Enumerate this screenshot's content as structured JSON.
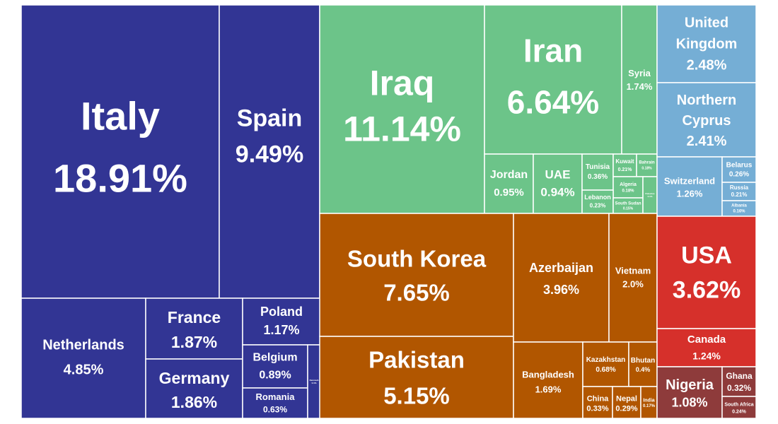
{
  "chart_data": {
    "type": "treemap",
    "title": "",
    "colors": {
      "europe": "#323594",
      "middle_east": "#6cc489",
      "asia": "#b15600",
      "east_europe": "#75aed5",
      "americas": "#d6302b",
      "africa": "#8e3b3b",
      "border": "#ffffff"
    },
    "items": [
      {
        "name": "Italy",
        "value": 18.91,
        "label": "18.91%",
        "group": "europe"
      },
      {
        "name": "Spain",
        "value": 9.49,
        "label": "9.49%",
        "group": "europe"
      },
      {
        "name": "Netherlands",
        "value": 4.85,
        "label": "4.85%",
        "group": "europe"
      },
      {
        "name": "France",
        "value": 1.87,
        "label": "1.87%",
        "group": "europe"
      },
      {
        "name": "Germany",
        "value": 1.86,
        "label": "1.86%",
        "group": "europe"
      },
      {
        "name": "Poland",
        "value": 1.17,
        "label": "1.17%",
        "group": "europe"
      },
      {
        "name": "Belgium",
        "value": 0.89,
        "label": "0.89%",
        "group": "europe"
      },
      {
        "name": "Romania",
        "value": 0.63,
        "label": "0.63%",
        "group": "europe"
      },
      {
        "name": "Denmark",
        "value": 0.1,
        "label": "0.1%",
        "group": "europe"
      },
      {
        "name": "Iraq",
        "value": 11.14,
        "label": "11.14%",
        "group": "middle_east"
      },
      {
        "name": "Iran",
        "value": 6.64,
        "label": "6.64%",
        "group": "middle_east"
      },
      {
        "name": "Syria",
        "value": 1.74,
        "label": "1.74%",
        "group": "middle_east"
      },
      {
        "name": "Jordan",
        "value": 0.95,
        "label": "0.95%",
        "group": "middle_east"
      },
      {
        "name": "UAE",
        "value": 0.94,
        "label": "0.94%",
        "group": "middle_east"
      },
      {
        "name": "Tunisia",
        "value": 0.36,
        "label": "0.36%",
        "group": "middle_east"
      },
      {
        "name": "Kuwait",
        "value": 0.21,
        "label": "0.21%",
        "group": "middle_east"
      },
      {
        "name": "Bahrain",
        "value": 0.18,
        "label": "0.18%",
        "group": "middle_east"
      },
      {
        "name": "Algeria",
        "value": 0.18,
        "label": "0.18%",
        "group": "middle_east"
      },
      {
        "name": "Lebanon",
        "value": 0.23,
        "label": "0.23%",
        "group": "middle_east"
      },
      {
        "name": "South Sudan",
        "value": 0.15,
        "label": "0.15%",
        "group": "middle_east"
      },
      {
        "name": "Palestine",
        "value": 0.1,
        "label": "0.1%",
        "group": "middle_east"
      },
      {
        "name": "United Kingdom",
        "value": 2.48,
        "label": "2.48%",
        "group": "east_europe"
      },
      {
        "name": "Northern Cyprus",
        "value": 2.41,
        "label": "2.41%",
        "group": "east_europe"
      },
      {
        "name": "Switzerland",
        "value": 1.26,
        "label": "1.26%",
        "group": "east_europe"
      },
      {
        "name": "Belarus",
        "value": 0.26,
        "label": "0.26%",
        "group": "east_europe"
      },
      {
        "name": "Russia",
        "value": 0.21,
        "label": "0.21%",
        "group": "east_europe"
      },
      {
        "name": "Albania",
        "value": 0.16,
        "label": "0.16%",
        "group": "east_europe"
      },
      {
        "name": "South Korea",
        "value": 7.65,
        "label": "7.65%",
        "group": "asia"
      },
      {
        "name": "Pakistan",
        "value": 5.15,
        "label": "5.15%",
        "group": "asia"
      },
      {
        "name": "Azerbaijan",
        "value": 3.96,
        "label": "3.96%",
        "group": "asia"
      },
      {
        "name": "Vietnam",
        "value": 2.0,
        "label": "2.0%",
        "group": "asia"
      },
      {
        "name": "Bangladesh",
        "value": 1.69,
        "label": "1.69%",
        "group": "asia"
      },
      {
        "name": "Kazakhstan",
        "value": 0.68,
        "label": "0.68%",
        "group": "asia"
      },
      {
        "name": "Bhutan",
        "value": 0.4,
        "label": "0.4%",
        "group": "asia"
      },
      {
        "name": "China",
        "value": 0.33,
        "label": "0.33%",
        "group": "asia"
      },
      {
        "name": "Nepal",
        "value": 0.29,
        "label": "0.29%",
        "group": "asia"
      },
      {
        "name": "India",
        "value": 0.17,
        "label": "0.17%",
        "group": "asia"
      },
      {
        "name": "USA",
        "value": 3.62,
        "label": "3.62%",
        "group": "americas"
      },
      {
        "name": "Canada",
        "value": 1.24,
        "label": "1.24%",
        "group": "americas"
      },
      {
        "name": "Nigeria",
        "value": 1.08,
        "label": "1.08%",
        "group": "africa"
      },
      {
        "name": "Ghana",
        "value": 0.32,
        "label": "0.32%",
        "group": "africa"
      },
      {
        "name": "South Africa",
        "value": 0.24,
        "label": "0.24%",
        "group": "africa"
      }
    ]
  }
}
